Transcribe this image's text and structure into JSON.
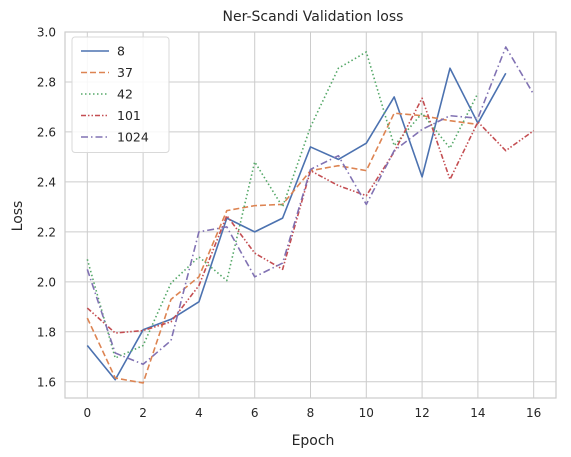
{
  "chart_data": {
    "type": "line",
    "title": "Ner-Scandi Validation loss",
    "xlabel": "Epoch",
    "ylabel": "Loss",
    "xlim": [
      -0.8,
      16.8
    ],
    "ylim": [
      1.535,
      3.0
    ],
    "xticks": [
      0,
      2,
      4,
      6,
      8,
      10,
      12,
      14,
      16
    ],
    "yticks": [
      1.6,
      1.8,
      2.0,
      2.2,
      2.4,
      2.6,
      2.8,
      3.0
    ],
    "grid": true,
    "legend_position": "top-left",
    "series": [
      {
        "name": "8",
        "color": "#4c72b0",
        "style": "solid",
        "x": [
          0,
          1,
          2,
          3,
          4,
          5,
          6,
          7,
          8,
          9,
          10,
          11,
          12,
          13,
          14,
          15
        ],
        "values": [
          1.745,
          1.608,
          1.808,
          1.85,
          1.92,
          2.255,
          2.2,
          2.255,
          2.54,
          2.49,
          2.555,
          2.74,
          2.42,
          2.855,
          2.635,
          2.835
        ]
      },
      {
        "name": "37",
        "color": "#dd8452",
        "style": "dashed",
        "x": [
          0,
          1,
          2,
          3,
          4,
          5,
          6,
          7,
          8,
          9,
          10,
          11,
          12,
          13,
          14
        ],
        "values": [
          1.855,
          1.615,
          1.595,
          1.93,
          2.02,
          2.285,
          2.305,
          2.31,
          2.445,
          2.465,
          2.445,
          2.675,
          2.665,
          2.645,
          2.63
        ]
      },
      {
        "name": "42",
        "color": "#55a868",
        "style": "dotted",
        "x": [
          0,
          1,
          2,
          3,
          4,
          5,
          6,
          7,
          8,
          9,
          10,
          11,
          12,
          13,
          14
        ],
        "values": [
          2.09,
          1.695,
          1.745,
          1.995,
          2.1,
          2.005,
          2.48,
          2.3,
          2.62,
          2.855,
          2.92,
          2.545,
          2.675,
          2.535,
          2.755
        ]
      },
      {
        "name": "101",
        "color": "#c44e52",
        "style": "dashdotdot",
        "x": [
          0,
          1,
          2,
          3,
          4,
          5,
          6,
          7,
          8,
          9,
          10,
          11,
          12,
          13,
          14,
          15,
          16
        ],
        "values": [
          1.895,
          1.795,
          1.805,
          1.84,
          1.985,
          2.265,
          2.115,
          2.05,
          2.445,
          2.385,
          2.345,
          2.52,
          2.735,
          2.41,
          2.64,
          2.525,
          2.605
        ]
      },
      {
        "name": "1024",
        "color": "#8172b3",
        "style": "dashdot",
        "x": [
          0,
          1,
          2,
          3,
          4,
          5,
          6,
          7,
          8,
          9,
          10,
          11,
          12,
          13,
          14,
          15,
          16
        ],
        "values": [
          2.05,
          1.715,
          1.67,
          1.765,
          2.2,
          2.22,
          2.02,
          2.075,
          2.45,
          2.505,
          2.31,
          2.525,
          2.61,
          2.665,
          2.655,
          2.94,
          2.75
        ]
      }
    ]
  }
}
